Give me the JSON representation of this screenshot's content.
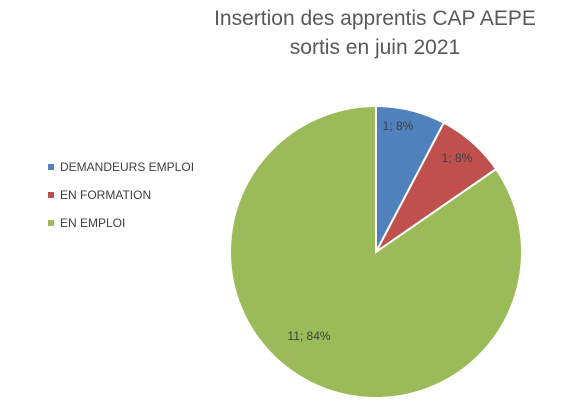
{
  "chart_data": {
    "type": "pie",
    "title_lines": [
      "Insertion des apprentis CAP AEPE",
      "sortis en juin 2021"
    ],
    "categories": [
      "DEMANDEURS EMPLOI",
      "EN FORMATION",
      "EN EMPLOI"
    ],
    "values": [
      1,
      1,
      11
    ],
    "percent_labels": [
      "8%",
      "8%",
      "84%"
    ],
    "data_labels": [
      "1; 8%",
      "1; 8%",
      "11; 84%"
    ],
    "colors": [
      "#4f81bd",
      "#c0504d",
      "#9bbb59"
    ],
    "legend_position": "left"
  }
}
